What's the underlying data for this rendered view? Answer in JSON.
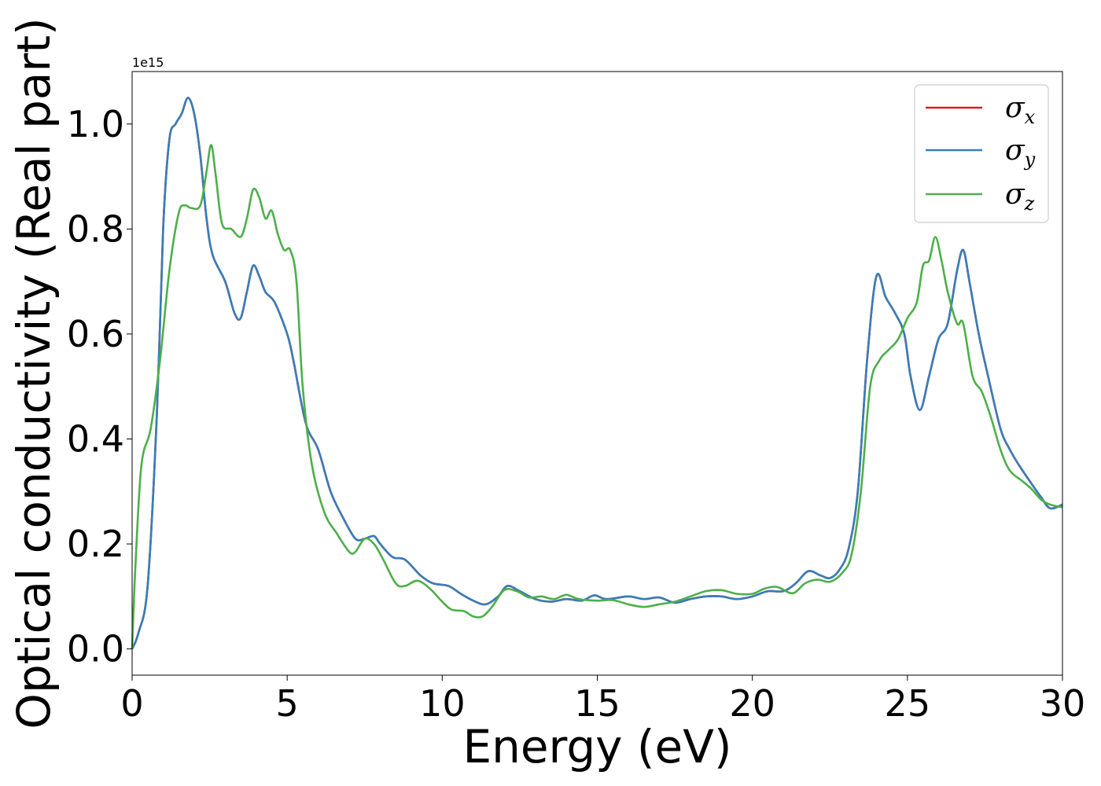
{
  "chart_data": {
    "type": "line",
    "title": "",
    "xlabel": "Energy (eV)",
    "ylabel": "Optical conductivity (Real part)",
    "y_offset_text": "1e15",
    "xlim": [
      0,
      30
    ],
    "ylim": [
      -0.05,
      1.1
    ],
    "xticks": [
      0,
      5,
      10,
      15,
      20,
      25,
      30
    ],
    "xtick_labels": [
      "0",
      "5",
      "10",
      "15",
      "20",
      "25",
      "30"
    ],
    "yticks": [
      0.0,
      0.2,
      0.4,
      0.6,
      0.8,
      1.0
    ],
    "ytick_labels": [
      "0.0",
      "0.2",
      "0.4",
      "0.6",
      "0.8",
      "1.0"
    ],
    "grid": false,
    "legend_position": "top-right",
    "series": [
      {
        "name": "σx",
        "legend_base": "σ",
        "legend_sub": "x",
        "color": "#e41a1c",
        "points": [
          [
            0,
            0.0
          ],
          [
            0.2,
            0.03
          ],
          [
            0.5,
            0.12
          ],
          [
            0.8,
            0.45
          ],
          [
            1.0,
            0.8
          ],
          [
            1.2,
            0.97
          ],
          [
            1.4,
            1.0
          ],
          [
            1.6,
            1.02
          ],
          [
            1.8,
            1.05
          ],
          [
            2.0,
            1.02
          ],
          [
            2.2,
            0.94
          ],
          [
            2.4,
            0.82
          ],
          [
            2.6,
            0.75
          ],
          [
            3.0,
            0.7
          ],
          [
            3.3,
            0.64
          ],
          [
            3.5,
            0.63
          ],
          [
            3.7,
            0.68
          ],
          [
            3.9,
            0.73
          ],
          [
            4.1,
            0.71
          ],
          [
            4.3,
            0.68
          ],
          [
            4.6,
            0.66
          ],
          [
            5.0,
            0.6
          ],
          [
            5.2,
            0.55
          ],
          [
            5.6,
            0.43
          ],
          [
            6.0,
            0.38
          ],
          [
            6.4,
            0.3
          ],
          [
            6.8,
            0.25
          ],
          [
            7.2,
            0.21
          ],
          [
            7.5,
            0.21
          ],
          [
            7.8,
            0.215
          ],
          [
            8.0,
            0.2
          ],
          [
            8.4,
            0.175
          ],
          [
            8.8,
            0.17
          ],
          [
            9.3,
            0.14
          ],
          [
            9.7,
            0.125
          ],
          [
            10.2,
            0.12
          ],
          [
            10.6,
            0.105
          ],
          [
            11.0,
            0.092
          ],
          [
            11.4,
            0.085
          ],
          [
            11.8,
            0.1
          ],
          [
            12.1,
            0.12
          ],
          [
            12.5,
            0.11
          ],
          [
            13.0,
            0.095
          ],
          [
            13.5,
            0.09
          ],
          [
            14.0,
            0.095
          ],
          [
            14.5,
            0.092
          ],
          [
            14.9,
            0.102
          ],
          [
            15.3,
            0.095
          ],
          [
            16.0,
            0.1
          ],
          [
            16.5,
            0.095
          ],
          [
            17.0,
            0.098
          ],
          [
            17.5,
            0.088
          ],
          [
            18.0,
            0.095
          ],
          [
            18.5,
            0.1
          ],
          [
            19.0,
            0.1
          ],
          [
            19.5,
            0.095
          ],
          [
            20.0,
            0.1
          ],
          [
            20.5,
            0.11
          ],
          [
            21.0,
            0.11
          ],
          [
            21.4,
            0.125
          ],
          [
            21.8,
            0.148
          ],
          [
            22.2,
            0.14
          ],
          [
            22.5,
            0.135
          ],
          [
            22.8,
            0.15
          ],
          [
            23.1,
            0.19
          ],
          [
            23.4,
            0.3
          ],
          [
            23.7,
            0.55
          ],
          [
            24.0,
            0.71
          ],
          [
            24.3,
            0.67
          ],
          [
            24.6,
            0.64
          ],
          [
            24.9,
            0.6
          ],
          [
            25.1,
            0.52
          ],
          [
            25.4,
            0.455
          ],
          [
            25.7,
            0.52
          ],
          [
            26.0,
            0.59
          ],
          [
            26.3,
            0.62
          ],
          [
            26.6,
            0.72
          ],
          [
            26.8,
            0.76
          ],
          [
            27.0,
            0.7
          ],
          [
            27.3,
            0.6
          ],
          [
            27.6,
            0.52
          ],
          [
            28.0,
            0.42
          ],
          [
            28.3,
            0.38
          ],
          [
            28.6,
            0.35
          ],
          [
            29.0,
            0.315
          ],
          [
            29.3,
            0.29
          ],
          [
            29.6,
            0.268
          ],
          [
            30.0,
            0.275
          ]
        ]
      },
      {
        "name": "σy",
        "legend_base": "σ",
        "legend_sub": "y",
        "color": "#377eb8",
        "points": [
          [
            0,
            0.0
          ],
          [
            0.2,
            0.03
          ],
          [
            0.5,
            0.12
          ],
          [
            0.8,
            0.45
          ],
          [
            1.0,
            0.8
          ],
          [
            1.2,
            0.97
          ],
          [
            1.4,
            1.0
          ],
          [
            1.6,
            1.02
          ],
          [
            1.8,
            1.05
          ],
          [
            2.0,
            1.02
          ],
          [
            2.2,
            0.94
          ],
          [
            2.4,
            0.82
          ],
          [
            2.6,
            0.75
          ],
          [
            3.0,
            0.7
          ],
          [
            3.3,
            0.64
          ],
          [
            3.5,
            0.63
          ],
          [
            3.7,
            0.68
          ],
          [
            3.9,
            0.73
          ],
          [
            4.1,
            0.71
          ],
          [
            4.3,
            0.68
          ],
          [
            4.6,
            0.66
          ],
          [
            5.0,
            0.6
          ],
          [
            5.2,
            0.55
          ],
          [
            5.6,
            0.43
          ],
          [
            6.0,
            0.38
          ],
          [
            6.4,
            0.3
          ],
          [
            6.8,
            0.25
          ],
          [
            7.2,
            0.21
          ],
          [
            7.5,
            0.21
          ],
          [
            7.8,
            0.215
          ],
          [
            8.0,
            0.2
          ],
          [
            8.4,
            0.175
          ],
          [
            8.8,
            0.17
          ],
          [
            9.3,
            0.14
          ],
          [
            9.7,
            0.125
          ],
          [
            10.2,
            0.12
          ],
          [
            10.6,
            0.105
          ],
          [
            11.0,
            0.092
          ],
          [
            11.4,
            0.085
          ],
          [
            11.8,
            0.1
          ],
          [
            12.1,
            0.12
          ],
          [
            12.5,
            0.11
          ],
          [
            13.0,
            0.095
          ],
          [
            13.5,
            0.09
          ],
          [
            14.0,
            0.095
          ],
          [
            14.5,
            0.092
          ],
          [
            14.9,
            0.102
          ],
          [
            15.3,
            0.095
          ],
          [
            16.0,
            0.1
          ],
          [
            16.5,
            0.095
          ],
          [
            17.0,
            0.098
          ],
          [
            17.5,
            0.088
          ],
          [
            18.0,
            0.095
          ],
          [
            18.5,
            0.1
          ],
          [
            19.0,
            0.1
          ],
          [
            19.5,
            0.095
          ],
          [
            20.0,
            0.1
          ],
          [
            20.5,
            0.11
          ],
          [
            21.0,
            0.11
          ],
          [
            21.4,
            0.125
          ],
          [
            21.8,
            0.148
          ],
          [
            22.2,
            0.14
          ],
          [
            22.5,
            0.135
          ],
          [
            22.8,
            0.15
          ],
          [
            23.1,
            0.19
          ],
          [
            23.4,
            0.3
          ],
          [
            23.7,
            0.55
          ],
          [
            24.0,
            0.71
          ],
          [
            24.3,
            0.67
          ],
          [
            24.6,
            0.64
          ],
          [
            24.9,
            0.6
          ],
          [
            25.1,
            0.52
          ],
          [
            25.4,
            0.455
          ],
          [
            25.7,
            0.52
          ],
          [
            26.0,
            0.59
          ],
          [
            26.3,
            0.62
          ],
          [
            26.6,
            0.72
          ],
          [
            26.8,
            0.76
          ],
          [
            27.0,
            0.7
          ],
          [
            27.3,
            0.6
          ],
          [
            27.6,
            0.52
          ],
          [
            28.0,
            0.42
          ],
          [
            28.3,
            0.38
          ],
          [
            28.6,
            0.35
          ],
          [
            29.0,
            0.315
          ],
          [
            29.3,
            0.29
          ],
          [
            29.6,
            0.268
          ],
          [
            30.0,
            0.275
          ]
        ]
      },
      {
        "name": "σz",
        "legend_base": "σ",
        "legend_sub": "z",
        "color": "#4daf4a",
        "points": [
          [
            0,
            0.0
          ],
          [
            0.1,
            0.15
          ],
          [
            0.3,
            0.35
          ],
          [
            0.6,
            0.42
          ],
          [
            0.9,
            0.55
          ],
          [
            1.2,
            0.72
          ],
          [
            1.5,
            0.83
          ],
          [
            1.7,
            0.845
          ],
          [
            1.9,
            0.84
          ],
          [
            2.2,
            0.845
          ],
          [
            2.4,
            0.91
          ],
          [
            2.55,
            0.96
          ],
          [
            2.7,
            0.9
          ],
          [
            2.9,
            0.81
          ],
          [
            3.2,
            0.8
          ],
          [
            3.5,
            0.785
          ],
          [
            3.7,
            0.82
          ],
          [
            3.9,
            0.875
          ],
          [
            4.1,
            0.86
          ],
          [
            4.3,
            0.82
          ],
          [
            4.5,
            0.835
          ],
          [
            4.7,
            0.79
          ],
          [
            4.9,
            0.76
          ],
          [
            5.1,
            0.76
          ],
          [
            5.3,
            0.7
          ],
          [
            5.5,
            0.5
          ],
          [
            5.8,
            0.35
          ],
          [
            6.2,
            0.26
          ],
          [
            6.6,
            0.22
          ],
          [
            7.0,
            0.185
          ],
          [
            7.2,
            0.185
          ],
          [
            7.5,
            0.21
          ],
          [
            7.8,
            0.2
          ],
          [
            8.1,
            0.17
          ],
          [
            8.5,
            0.125
          ],
          [
            8.8,
            0.12
          ],
          [
            9.2,
            0.13
          ],
          [
            9.6,
            0.115
          ],
          [
            10.0,
            0.09
          ],
          [
            10.3,
            0.075
          ],
          [
            10.7,
            0.072
          ],
          [
            11.0,
            0.062
          ],
          [
            11.3,
            0.062
          ],
          [
            11.6,
            0.08
          ],
          [
            12.0,
            0.112
          ],
          [
            12.4,
            0.11
          ],
          [
            12.8,
            0.098
          ],
          [
            13.2,
            0.1
          ],
          [
            13.6,
            0.095
          ],
          [
            14.0,
            0.103
          ],
          [
            14.4,
            0.095
          ],
          [
            15.0,
            0.092
          ],
          [
            15.5,
            0.093
          ],
          [
            16.0,
            0.085
          ],
          [
            16.5,
            0.08
          ],
          [
            17.0,
            0.085
          ],
          [
            17.5,
            0.09
          ],
          [
            18.0,
            0.1
          ],
          [
            18.5,
            0.11
          ],
          [
            19.0,
            0.112
          ],
          [
            19.5,
            0.105
          ],
          [
            20.0,
            0.105
          ],
          [
            20.4,
            0.115
          ],
          [
            20.8,
            0.118
          ],
          [
            21.3,
            0.106
          ],
          [
            21.7,
            0.125
          ],
          [
            22.1,
            0.132
          ],
          [
            22.5,
            0.128
          ],
          [
            22.9,
            0.145
          ],
          [
            23.2,
            0.18
          ],
          [
            23.5,
            0.3
          ],
          [
            23.8,
            0.5
          ],
          [
            24.1,
            0.55
          ],
          [
            24.4,
            0.57
          ],
          [
            24.7,
            0.59
          ],
          [
            25.0,
            0.63
          ],
          [
            25.3,
            0.66
          ],
          [
            25.5,
            0.73
          ],
          [
            25.7,
            0.74
          ],
          [
            25.9,
            0.785
          ],
          [
            26.1,
            0.74
          ],
          [
            26.3,
            0.68
          ],
          [
            26.6,
            0.62
          ],
          [
            26.8,
            0.62
          ],
          [
            27.1,
            0.52
          ],
          [
            27.4,
            0.49
          ],
          [
            27.7,
            0.44
          ],
          [
            28.0,
            0.38
          ],
          [
            28.3,
            0.34
          ],
          [
            28.7,
            0.32
          ],
          [
            29.0,
            0.305
          ],
          [
            29.3,
            0.285
          ],
          [
            29.6,
            0.275
          ],
          [
            30.0,
            0.27
          ]
        ]
      }
    ]
  }
}
